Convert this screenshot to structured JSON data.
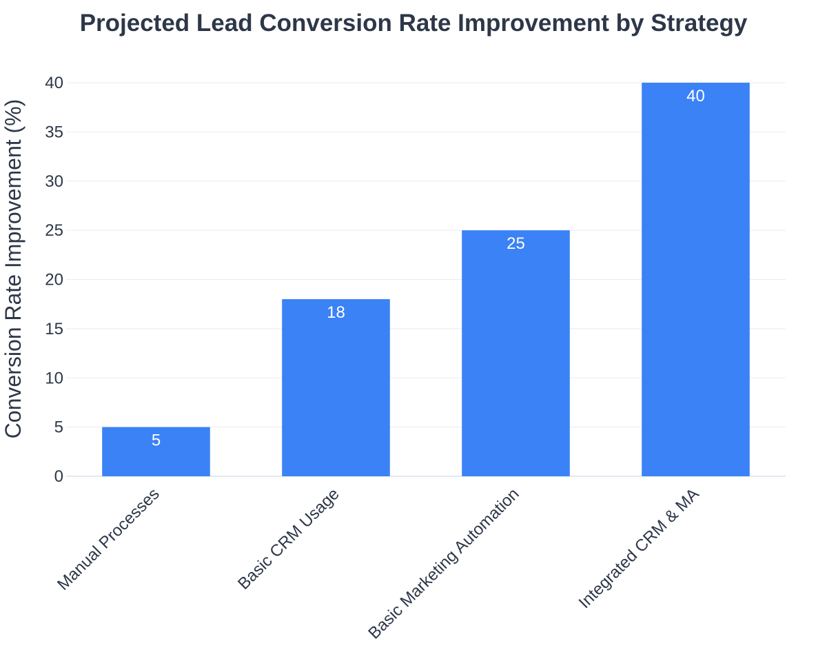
{
  "chart_data": {
    "type": "bar",
    "title": "Projected Lead Conversion Rate Improvement by Strategy",
    "xlabel": "",
    "ylabel": "Conversion Rate Improvement (%)",
    "categories": [
      "Manual Processes",
      "Basic CRM Usage",
      "Basic Marketing Automation",
      "Integrated CRM & MA"
    ],
    "values": [
      5,
      18,
      25,
      40
    ],
    "data_labels": [
      "5",
      "18",
      "25",
      "40"
    ],
    "ylim": [
      0,
      40
    ],
    "yticks": [
      0,
      5,
      10,
      15,
      20,
      25,
      30,
      35,
      40
    ],
    "ytick_labels": [
      "0",
      "5",
      "10",
      "15",
      "20",
      "25",
      "30",
      "35",
      "40"
    ],
    "grid": true,
    "legend": "none",
    "colors": {
      "bar": "#3b82f6",
      "bar_label": "#ffffff",
      "text": "#2d3748",
      "grid": "#e8ecf1"
    }
  }
}
